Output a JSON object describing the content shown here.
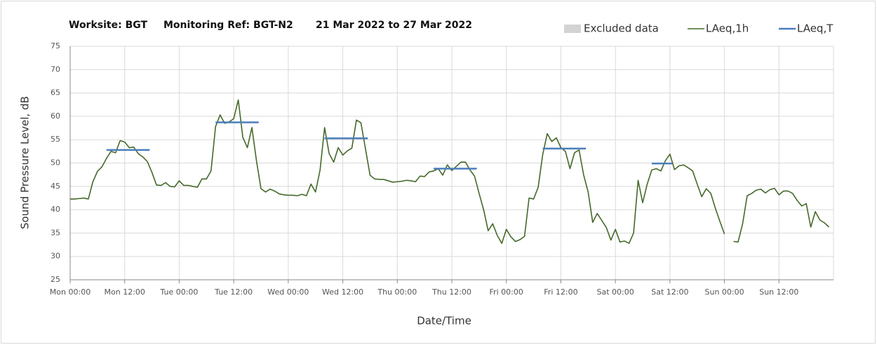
{
  "chart_data": {
    "type": "line",
    "title": [
      "Worksite: BGT",
      "Monitoring Ref: BGT-N2",
      "21 Mar 2022 to 27 Mar 2022"
    ],
    "xlabel": "Date/Time",
    "ylabel": "Sound Pressure Level, dB",
    "excluded_data": {
      "name": "Excluded data",
      "color": "#d3d3d3"
    },
    "x": [
      0,
      1,
      2,
      3,
      4,
      5,
      6,
      7,
      8,
      9,
      10,
      11,
      12,
      13,
      14,
      15,
      16,
      17,
      18,
      19,
      20,
      21,
      22,
      23,
      24,
      25,
      26,
      27,
      28,
      29,
      30,
      31,
      32,
      33,
      34,
      35,
      36,
      37,
      38,
      39,
      40,
      41,
      42,
      43,
      44,
      45,
      46,
      47,
      48,
      49,
      50,
      51,
      52,
      53,
      54,
      55,
      56,
      57,
      58,
      59,
      60,
      61,
      62,
      63,
      64,
      65,
      66,
      67,
      68,
      69,
      70,
      71,
      72,
      73,
      74,
      75,
      76,
      77,
      78,
      79,
      80,
      81,
      82,
      83,
      84,
      85,
      86,
      87,
      88,
      89,
      90,
      91,
      92,
      93,
      94,
      95,
      96,
      97,
      98,
      99,
      100,
      101,
      102,
      103,
      104,
      105,
      106,
      107,
      108,
      109,
      110,
      111,
      112,
      113,
      114,
      115,
      116,
      117,
      118,
      119,
      120,
      121,
      122,
      123,
      124,
      125,
      126,
      127,
      128,
      129,
      130,
      131,
      132,
      133,
      134,
      135,
      136,
      137,
      138,
      139,
      140,
      141,
      142,
      143,
      144,
      145,
      146,
      147,
      148,
      149,
      150,
      151,
      152,
      153,
      154,
      155,
      156,
      157,
      158,
      159,
      160,
      161,
      162,
      163,
      164,
      165,
      166,
      167
    ],
    "series": [
      {
        "name": "LAeq,1h",
        "color": "#46692a",
        "values": [
          42.3,
          42.3,
          42.4,
          42.5,
          42.3,
          46,
          48.2,
          49.2,
          51,
          52.5,
          52.2,
          54.8,
          54.5,
          53.3,
          53.4,
          52,
          51.3,
          50.3,
          48,
          45.3,
          45.2,
          45.8,
          45,
          44.9,
          46.2,
          45.2,
          45.2,
          45,
          44.8,
          46.6,
          46.6,
          48.3,
          57.8,
          60.3,
          58.5,
          58.8,
          59.5,
          63.5,
          55.5,
          53.3,
          57.6,
          50.5,
          44.5,
          43.8,
          44.4,
          44,
          43.4,
          43.2,
          43.1,
          43.1,
          43,
          43.3,
          43,
          45.5,
          43.8,
          48.5,
          57.6,
          52,
          50.2,
          53.3,
          51.7,
          52.6,
          53.2,
          59.2,
          58.6,
          53,
          47.4,
          46.6,
          46.5,
          46.5,
          46.2,
          45.9,
          46,
          46.1,
          46.3,
          46.2,
          46,
          47.2,
          47.1,
          48.1,
          48.3,
          48.8,
          47.4,
          49.6,
          48.4,
          49.3,
          50.2,
          50.2,
          48.5,
          47.2,
          43.5,
          40,
          35.5,
          37,
          34.5,
          32.8,
          35.8,
          34.2,
          33.2,
          33.6,
          34.3,
          42.5,
          42.3,
          44.8,
          51.8,
          56.3,
          54.6,
          55.4,
          53.3,
          52.5,
          48.8,
          52.2,
          52.8,
          47.5,
          43.8,
          37.3,
          39.2,
          37.7,
          36.2,
          33.5,
          35.8,
          33.1,
          33.3,
          32.8,
          35,
          46.3,
          41.5,
          45.5,
          48.5,
          48.8,
          48.3,
          50.5,
          51.9,
          48.6,
          49.4,
          49.6,
          49,
          48.3,
          45.5,
          42.8,
          44.5,
          43.5,
          40.3,
          37.5,
          34.8,
          null,
          33.2,
          33.1,
          37,
          43,
          43.5,
          44.2,
          44.4,
          43.6,
          44.3,
          44.6,
          43.2,
          44,
          44,
          43.5,
          42,
          40.8,
          41.3,
          36.3,
          39.6,
          37.8,
          37.2,
          36.3
        ]
      },
      {
        "name": "LAeq,T",
        "color": "#4a7ebb",
        "segments": [
          {
            "x": [
              8,
              17.5
            ],
            "value": 52.8
          },
          {
            "x": [
              32,
              41.5
            ],
            "value": 58.7
          },
          {
            "x": [
              56,
              65.5
            ],
            "value": 55.3
          },
          {
            "x": [
              80,
              89.5
            ],
            "value": 48.8
          },
          {
            "x": [
              104,
              113.5
            ],
            "value": 53.1
          },
          {
            "x": [
              128,
              132.5
            ],
            "value": 49.9
          }
        ]
      }
    ],
    "xlim": [
      0,
      168
    ],
    "xticks": [
      {
        "value": 0,
        "label": "Mon 00:00"
      },
      {
        "value": 12,
        "label": "Mon 12:00"
      },
      {
        "value": 24,
        "label": "Tue 00:00"
      },
      {
        "value": 36,
        "label": "Tue 12:00"
      },
      {
        "value": 48,
        "label": "Wed 00:00"
      },
      {
        "value": 60,
        "label": "Wed 12:00"
      },
      {
        "value": 72,
        "label": "Thu 00:00"
      },
      {
        "value": 84,
        "label": "Thu 12:00"
      },
      {
        "value": 96,
        "label": "Fri 00:00"
      },
      {
        "value": 108,
        "label": "Fri 12:00"
      },
      {
        "value": 120,
        "label": "Sat 00:00"
      },
      {
        "value": 132,
        "label": "Sat 12:00"
      },
      {
        "value": 144,
        "label": "Sun 00:00"
      },
      {
        "value": 156,
        "label": "Sun 12:00"
      }
    ],
    "ylim": [
      25,
      75
    ],
    "yticks": [
      25,
      30,
      35,
      40,
      45,
      50,
      55,
      60,
      65,
      70,
      75
    ],
    "grid": true,
    "legend": "top-right"
  }
}
